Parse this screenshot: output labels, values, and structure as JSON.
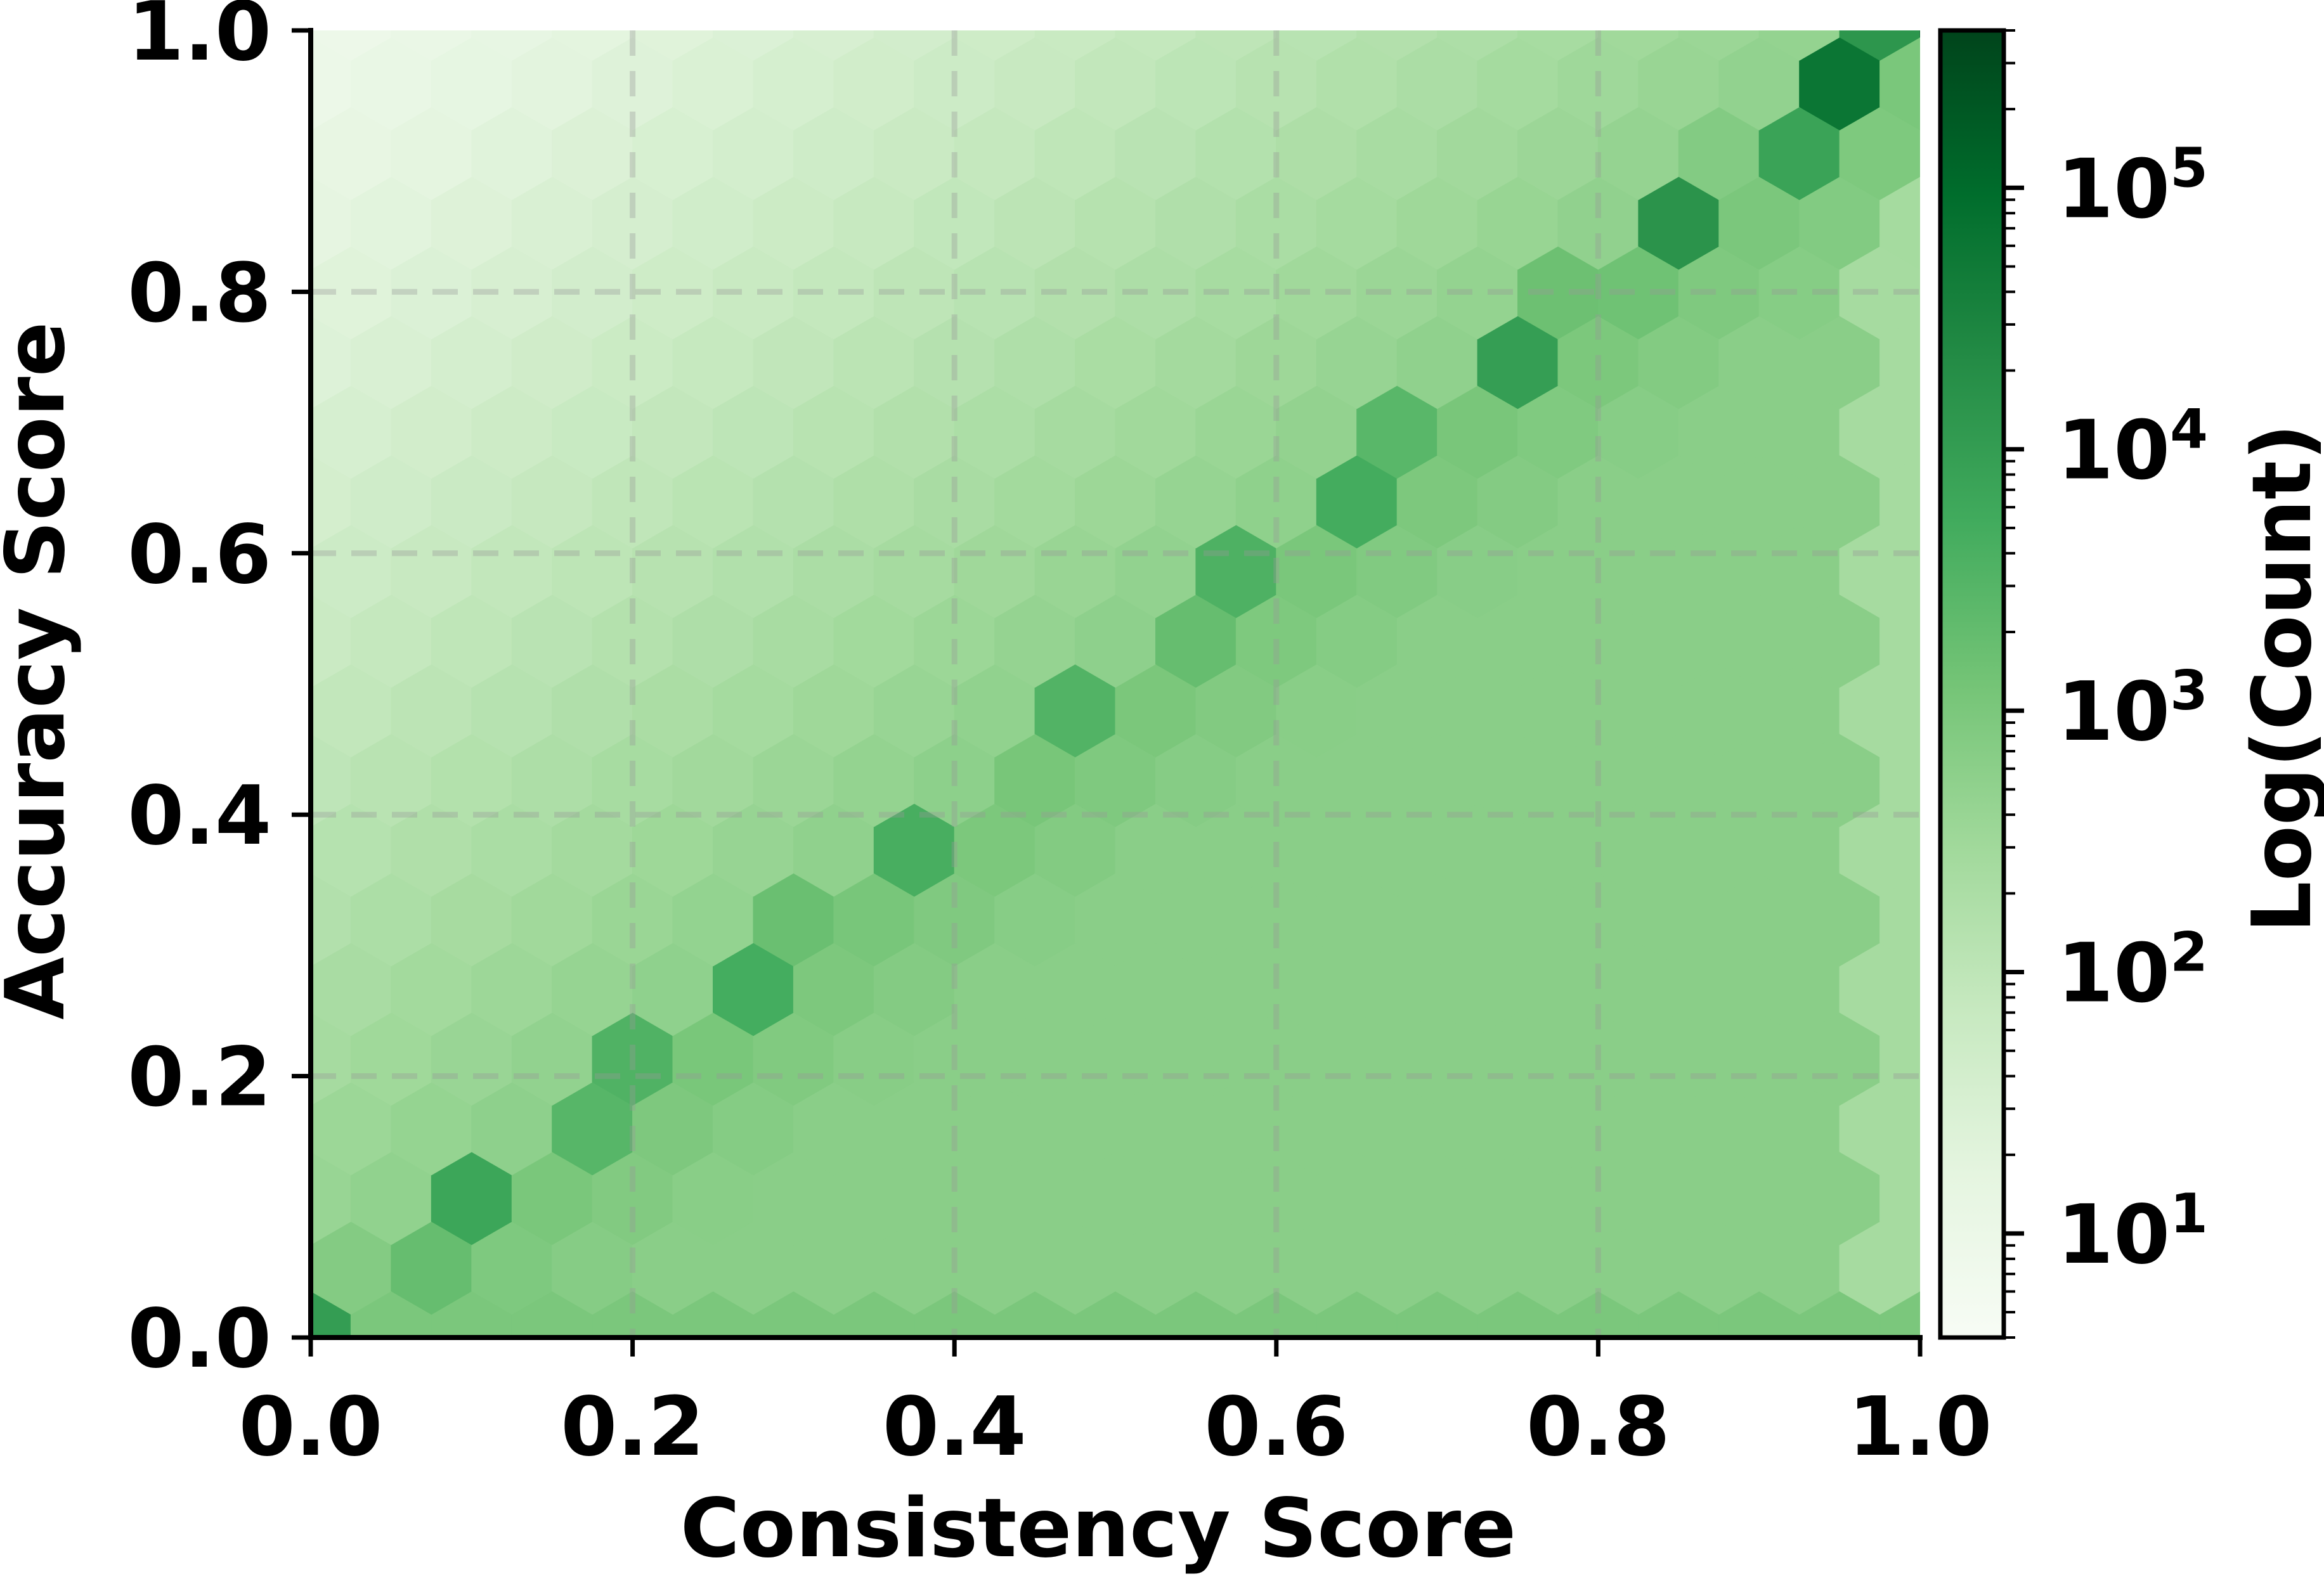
{
  "chart_data": {
    "type": "heatmap",
    "subtype": "hexbin",
    "title": "",
    "xlabel": "Consistency Score",
    "ylabel": "Accuracy Score",
    "xlim": [
      0.0,
      1.0
    ],
    "ylim": [
      0.0,
      1.0
    ],
    "x_ticks": [
      "0.0",
      "0.2",
      "0.4",
      "0.6",
      "0.8",
      "1.0"
    ],
    "y_ticks": [
      "0.0",
      "0.2",
      "0.4",
      "0.6",
      "0.8",
      "1.0"
    ],
    "grid": true,
    "grid_style": "dashed",
    "hex_gridsize": 20,
    "colormap": "Greens",
    "colorbar": {
      "label": "Log(Count)",
      "scale": "log",
      "range": [
        4,
        400000
      ],
      "ticks": [
        {
          "base": "10",
          "exp": "1",
          "value": 10
        },
        {
          "base": "10",
          "exp": "2",
          "value": 100
        },
        {
          "base": "10",
          "exp": "3",
          "value": 1000
        },
        {
          "base": "10",
          "exp": "4",
          "value": 10000
        },
        {
          "base": "10",
          "exp": "5",
          "value": 100000
        }
      ]
    },
    "density_description": {
      "diagonal_ridge_log10_counts": [
        {
          "x": 0.05,
          "y": 0.05,
          "log10_count": 4.0
        },
        {
          "x": 0.15,
          "y": 0.15,
          "log10_count": 3.8
        },
        {
          "x": 0.3,
          "y": 0.3,
          "log10_count": 3.8
        },
        {
          "x": 0.45,
          "y": 0.45,
          "log10_count": 3.5
        },
        {
          "x": 0.6,
          "y": 0.6,
          "log10_count": 3.8
        },
        {
          "x": 0.75,
          "y": 0.75,
          "log10_count": 4.0
        },
        {
          "x": 0.9,
          "y": 0.9,
          "log10_count": 4.3
        },
        {
          "x": 1.0,
          "y": 1.0,
          "log10_count": 5.5
        }
      ],
      "upper_left_corner_log10_count": 1.0,
      "lower_right_region_log10_count": 2.8,
      "bottom_edge_log10_count": 3.0
    },
    "colors": {
      "cmap_stops": [
        "#f7fcf5",
        "#e5f5e0",
        "#c7e9c0",
        "#a1d99b",
        "#74c476",
        "#41ab5d",
        "#238b45",
        "#006d2c",
        "#00441b"
      ],
      "grid": "#999999",
      "axis": "#000000"
    }
  }
}
